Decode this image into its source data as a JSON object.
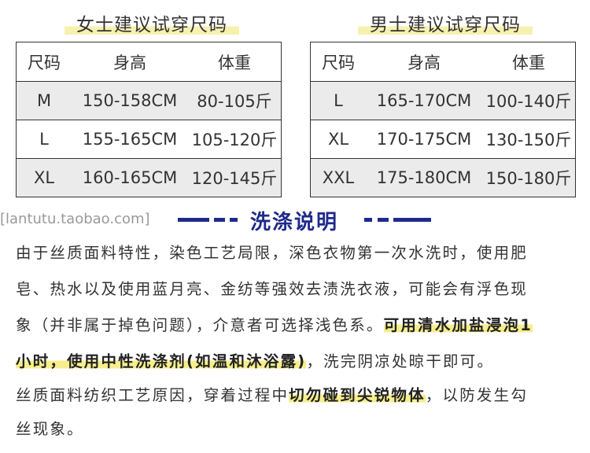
{
  "women": {
    "title": "女士建议试穿尺码",
    "headers": [
      "尺码",
      "身高",
      "体重"
    ],
    "rows": [
      [
        "M",
        "150-158CM",
        "80-105斤"
      ],
      [
        "L",
        "155-165CM",
        "105-120斤"
      ],
      [
        "XL",
        "160-165CM",
        "120-145斤"
      ]
    ]
  },
  "men": {
    "title": "男士建议试穿尺码",
    "headers": [
      "尺码",
      "身高",
      "体重"
    ],
    "rows": [
      [
        "L",
        "165-170CM",
        "100-140斤"
      ],
      [
        "XL",
        "170-175CM",
        "130-150斤"
      ],
      [
        "XXL",
        "175-180CM",
        "150-180斤"
      ]
    ]
  },
  "washing": {
    "title": "洗涤说明",
    "watermark": "[lantutu.taobao.com]",
    "accent": "#1f2a8a",
    "highlight": "#f6ee8c",
    "lines": [
      [
        "由于丝质面料特性，染色工艺局限，深色衣物第一次水洗时，使用肥"
      ],
      [
        "皂、热水以及使用蓝月亮、金纺等强效去渍洗衣液，可能会有浮色现"
      ],
      [
        "象（并非属于掉色问题），介意者可选择浅色系。",
        "可用清水加盐浸泡1"
      ],
      [
        "",
        "小时，使用中性洗涤剂(如温和沐浴露)",
        "，洗完阴凉处晾干即可。"
      ],
      [
        "丝质面料纺织工艺原因，穿着过程中",
        "切勿碰到尖锐物体",
        "，以防发生勾"
      ],
      [
        "丝现象。"
      ]
    ]
  }
}
